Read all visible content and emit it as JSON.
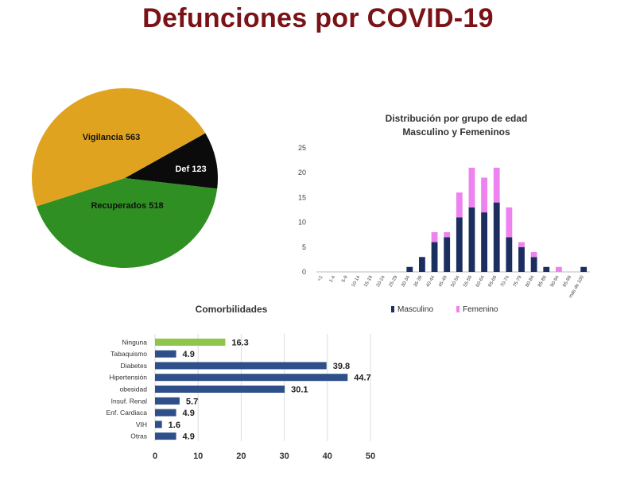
{
  "title": "Defunciones por COVID-19",
  "chart_data": [
    {
      "type": "pie",
      "slices": [
        {
          "label": "Vigilancia",
          "value": 563,
          "color": "#e0a320"
        },
        {
          "label": "Def",
          "value": 123,
          "color": "#0b0b0b"
        },
        {
          "label": "Recuperados",
          "value": 518,
          "color": "#2f8f22"
        }
      ]
    },
    {
      "type": "bar",
      "stacked": true,
      "title": "Distribución por grupo de edad",
      "subtitle": "Masculino y Femeninos",
      "categories": [
        "<1",
        "1-4",
        "5-9",
        "10-14",
        "15-19",
        "20-24",
        "25-29",
        "30-34",
        "35-39",
        "40-44",
        "45-49",
        "50-54",
        "55-59",
        "60-64",
        "65-69",
        "70-74",
        "75-79",
        "80-84",
        "85-89",
        "90-94",
        "95-99",
        "más de 100"
      ],
      "series": [
        {
          "name": "Masculino",
          "color": "#1c2e5e",
          "values": [
            0,
            0,
            0,
            0,
            0,
            0,
            0,
            1,
            3,
            6,
            7,
            11,
            13,
            12,
            14,
            7,
            5,
            3,
            1,
            0,
            0,
            1
          ]
        },
        {
          "name": "Femenino",
          "color": "#ee82ee",
          "values": [
            0,
            0,
            0,
            0,
            0,
            0,
            0,
            0,
            0,
            2,
            1,
            5,
            8,
            7,
            7,
            6,
            1,
            1,
            0,
            1,
            0,
            0
          ]
        }
      ],
      "yticks": [
        0,
        5,
        10,
        15,
        20,
        25
      ],
      "ylim": [
        0,
        25
      ],
      "legend_position": "bottom"
    },
    {
      "type": "bar",
      "orientation": "horizontal",
      "title": "Comorbilidades",
      "categories": [
        "Ninguna",
        "Tabaquismo",
        "Diabetes",
        "Hipertensión",
        "obesidad",
        "Insuf. Renal",
        "Enf. Cardiaca",
        "VIH",
        "Otras"
      ],
      "values": [
        16.3,
        4.9,
        39.8,
        44.7,
        30.1,
        5.7,
        4.9,
        1.6,
        4.9
      ],
      "value_labels": [
        "16.3",
        "4.9",
        "39.8",
        "44.7",
        "30.1",
        "5.7",
        "4.9",
        "1.6",
        "4.9"
      ],
      "colors": [
        "#8fc54b",
        "#2e4f8a",
        "#2e4f8a",
        "#2e4f8a",
        "#2e4f8a",
        "#2e4f8a",
        "#2e4f8a",
        "#2e4f8a",
        "#2e4f8a"
      ],
      "xticks": [
        0,
        10,
        20,
        30,
        40,
        50
      ],
      "xlim": [
        0,
        50
      ]
    }
  ]
}
